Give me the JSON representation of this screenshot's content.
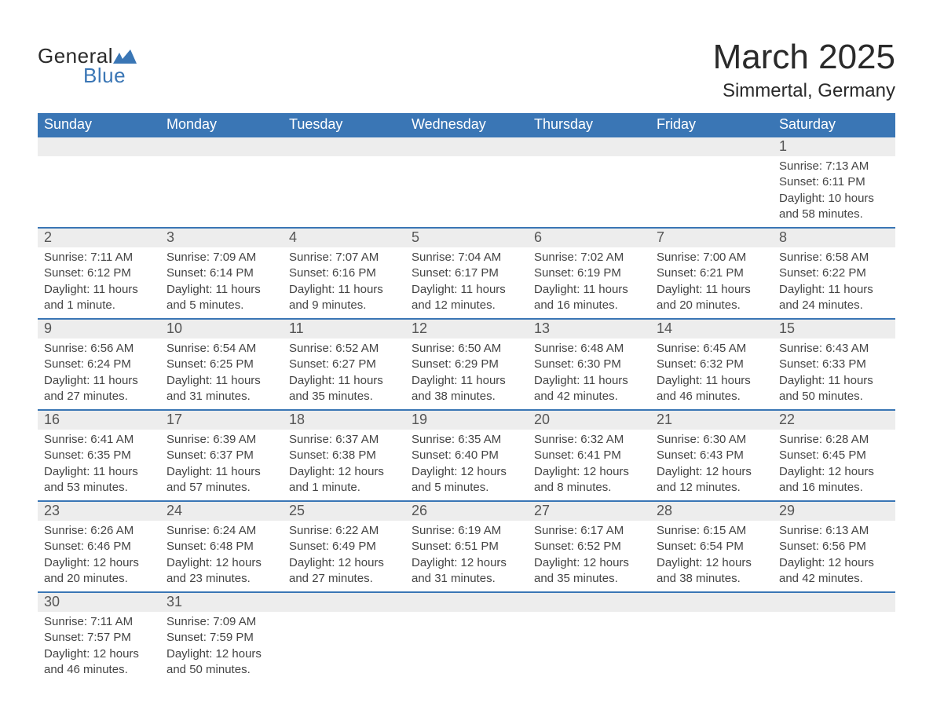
{
  "logo": {
    "part1": "General",
    "part2": "Blue"
  },
  "title": "March 2025",
  "subtitle": "Simmertal, Germany",
  "colors": {
    "header_bg": "#3a76b5",
    "header_text": "#ffffff",
    "daynum_bg": "#ededed",
    "daynum_text": "#555555",
    "body_text": "#444444",
    "page_bg": "#ffffff",
    "logo_blue": "#3a76b5",
    "logo_dark": "#2a2a2a"
  },
  "day_headers": [
    "Sunday",
    "Monday",
    "Tuesday",
    "Wednesday",
    "Thursday",
    "Friday",
    "Saturday"
  ],
  "labels": {
    "sunrise": "Sunrise:",
    "sunset": "Sunset:",
    "daylight": "Daylight:"
  },
  "weeks": [
    [
      {
        "day": "",
        "sunrise": "",
        "sunset": "",
        "daylight": ""
      },
      {
        "day": "",
        "sunrise": "",
        "sunset": "",
        "daylight": ""
      },
      {
        "day": "",
        "sunrise": "",
        "sunset": "",
        "daylight": ""
      },
      {
        "day": "",
        "sunrise": "",
        "sunset": "",
        "daylight": ""
      },
      {
        "day": "",
        "sunrise": "",
        "sunset": "",
        "daylight": ""
      },
      {
        "day": "",
        "sunrise": "",
        "sunset": "",
        "daylight": ""
      },
      {
        "day": "1",
        "sunrise": "7:13 AM",
        "sunset": "6:11 PM",
        "daylight": "10 hours and 58 minutes."
      }
    ],
    [
      {
        "day": "2",
        "sunrise": "7:11 AM",
        "sunset": "6:12 PM",
        "daylight": "11 hours and 1 minute."
      },
      {
        "day": "3",
        "sunrise": "7:09 AM",
        "sunset": "6:14 PM",
        "daylight": "11 hours and 5 minutes."
      },
      {
        "day": "4",
        "sunrise": "7:07 AM",
        "sunset": "6:16 PM",
        "daylight": "11 hours and 9 minutes."
      },
      {
        "day": "5",
        "sunrise": "7:04 AM",
        "sunset": "6:17 PM",
        "daylight": "11 hours and 12 minutes."
      },
      {
        "day": "6",
        "sunrise": "7:02 AM",
        "sunset": "6:19 PM",
        "daylight": "11 hours and 16 minutes."
      },
      {
        "day": "7",
        "sunrise": "7:00 AM",
        "sunset": "6:21 PM",
        "daylight": "11 hours and 20 minutes."
      },
      {
        "day": "8",
        "sunrise": "6:58 AM",
        "sunset": "6:22 PM",
        "daylight": "11 hours and 24 minutes."
      }
    ],
    [
      {
        "day": "9",
        "sunrise": "6:56 AM",
        "sunset": "6:24 PM",
        "daylight": "11 hours and 27 minutes."
      },
      {
        "day": "10",
        "sunrise": "6:54 AM",
        "sunset": "6:25 PM",
        "daylight": "11 hours and 31 minutes."
      },
      {
        "day": "11",
        "sunrise": "6:52 AM",
        "sunset": "6:27 PM",
        "daylight": "11 hours and 35 minutes."
      },
      {
        "day": "12",
        "sunrise": "6:50 AM",
        "sunset": "6:29 PM",
        "daylight": "11 hours and 38 minutes."
      },
      {
        "day": "13",
        "sunrise": "6:48 AM",
        "sunset": "6:30 PM",
        "daylight": "11 hours and 42 minutes."
      },
      {
        "day": "14",
        "sunrise": "6:45 AM",
        "sunset": "6:32 PM",
        "daylight": "11 hours and 46 minutes."
      },
      {
        "day": "15",
        "sunrise": "6:43 AM",
        "sunset": "6:33 PM",
        "daylight": "11 hours and 50 minutes."
      }
    ],
    [
      {
        "day": "16",
        "sunrise": "6:41 AM",
        "sunset": "6:35 PM",
        "daylight": "11 hours and 53 minutes."
      },
      {
        "day": "17",
        "sunrise": "6:39 AM",
        "sunset": "6:37 PM",
        "daylight": "11 hours and 57 minutes."
      },
      {
        "day": "18",
        "sunrise": "6:37 AM",
        "sunset": "6:38 PM",
        "daylight": "12 hours and 1 minute."
      },
      {
        "day": "19",
        "sunrise": "6:35 AM",
        "sunset": "6:40 PM",
        "daylight": "12 hours and 5 minutes."
      },
      {
        "day": "20",
        "sunrise": "6:32 AM",
        "sunset": "6:41 PM",
        "daylight": "12 hours and 8 minutes."
      },
      {
        "day": "21",
        "sunrise": "6:30 AM",
        "sunset": "6:43 PM",
        "daylight": "12 hours and 12 minutes."
      },
      {
        "day": "22",
        "sunrise": "6:28 AM",
        "sunset": "6:45 PM",
        "daylight": "12 hours and 16 minutes."
      }
    ],
    [
      {
        "day": "23",
        "sunrise": "6:26 AM",
        "sunset": "6:46 PM",
        "daylight": "12 hours and 20 minutes."
      },
      {
        "day": "24",
        "sunrise": "6:24 AM",
        "sunset": "6:48 PM",
        "daylight": "12 hours and 23 minutes."
      },
      {
        "day": "25",
        "sunrise": "6:22 AM",
        "sunset": "6:49 PM",
        "daylight": "12 hours and 27 minutes."
      },
      {
        "day": "26",
        "sunrise": "6:19 AM",
        "sunset": "6:51 PM",
        "daylight": "12 hours and 31 minutes."
      },
      {
        "day": "27",
        "sunrise": "6:17 AM",
        "sunset": "6:52 PM",
        "daylight": "12 hours and 35 minutes."
      },
      {
        "day": "28",
        "sunrise": "6:15 AM",
        "sunset": "6:54 PM",
        "daylight": "12 hours and 38 minutes."
      },
      {
        "day": "29",
        "sunrise": "6:13 AM",
        "sunset": "6:56 PM",
        "daylight": "12 hours and 42 minutes."
      }
    ],
    [
      {
        "day": "30",
        "sunrise": "7:11 AM",
        "sunset": "7:57 PM",
        "daylight": "12 hours and 46 minutes."
      },
      {
        "day": "31",
        "sunrise": "7:09 AM",
        "sunset": "7:59 PM",
        "daylight": "12 hours and 50 minutes."
      },
      {
        "day": "",
        "sunrise": "",
        "sunset": "",
        "daylight": ""
      },
      {
        "day": "",
        "sunrise": "",
        "sunset": "",
        "daylight": ""
      },
      {
        "day": "",
        "sunrise": "",
        "sunset": "",
        "daylight": ""
      },
      {
        "day": "",
        "sunrise": "",
        "sunset": "",
        "daylight": ""
      },
      {
        "day": "",
        "sunrise": "",
        "sunset": "",
        "daylight": ""
      }
    ]
  ]
}
